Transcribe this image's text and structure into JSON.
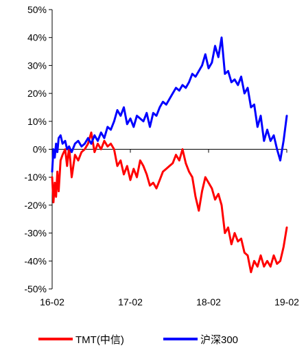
{
  "chart_data": {
    "type": "line",
    "title": "",
    "xlabel": "",
    "ylabel": "",
    "ylim": [
      -50,
      50
    ],
    "yticks": [
      "50%",
      "40%",
      "30%",
      "20%",
      "10%",
      "0%",
      "-10%",
      "-20%",
      "-30%",
      "-40%",
      "-50%"
    ],
    "xticks": [
      "16-02",
      "17-02",
      "18-02",
      "19-02"
    ],
    "xlim": [
      0,
      36
    ],
    "grid": false,
    "legend_position": "bottom",
    "series": [
      {
        "name": "TMT(中信)",
        "color": "#ff0000",
        "x": [
          0,
          0.2,
          0.4,
          0.6,
          0.8,
          1.0,
          1.3,
          1.6,
          2.0,
          2.3,
          2.6,
          3.0,
          3.5,
          4.0,
          4.5,
          5.0,
          5.5,
          6.0,
          6.5,
          7.0,
          7.5,
          8.0,
          8.5,
          9.0,
          9.5,
          10.0,
          10.5,
          11.0,
          11.5,
          12.0,
          12.5,
          13.0,
          13.5,
          14.0,
          14.5,
          15.0,
          15.5,
          16.0,
          16.5,
          17.0,
          17.5,
          18.0,
          18.5,
          19.0,
          19.5,
          20.0,
          20.5,
          21.0,
          21.5,
          22.0,
          22.5,
          23.0,
          23.5,
          24.0,
          24.5,
          25.0,
          25.5,
          26.0,
          26.5,
          27.0,
          27.5,
          28.0,
          28.5,
          29.0,
          29.5,
          30.0,
          30.5,
          31.0,
          31.5,
          32.0,
          32.5,
          33.0,
          33.5,
          34.0,
          34.5,
          35.0,
          35.5,
          36.0
        ],
        "values": [
          -10,
          -19,
          -12,
          -17,
          -8,
          -15,
          -4,
          -2,
          0,
          -6,
          1,
          -10,
          -2,
          -4,
          -1,
          0,
          2,
          6,
          -1,
          2,
          0,
          3,
          1,
          2,
          0,
          -6,
          -4,
          -9,
          -6,
          -11,
          -7,
          -10,
          -4,
          -6,
          -9,
          -13,
          -12,
          -14,
          -11,
          -8,
          -7,
          -6,
          -5,
          -2,
          -4,
          0,
          -5,
          -8,
          -10,
          -17,
          -22,
          -15,
          -10,
          -12,
          -14,
          -18,
          -16,
          -20,
          -30,
          -28,
          -34,
          -30,
          -33,
          -32,
          -37,
          -38,
          -44,
          -40,
          -42,
          -38,
          -42,
          -40,
          -42,
          -38,
          -41,
          -40,
          -35,
          -28
        ]
      },
      {
        "name": "沪深300",
        "color": "#0000ff",
        "x": [
          0,
          0.2,
          0.4,
          0.6,
          0.8,
          1.0,
          1.3,
          1.6,
          2.0,
          2.3,
          2.6,
          3.0,
          3.5,
          4.0,
          4.5,
          5.0,
          5.5,
          6.0,
          6.5,
          7.0,
          7.5,
          8.0,
          8.5,
          9.0,
          9.5,
          10.0,
          10.5,
          11.0,
          11.5,
          12.0,
          12.5,
          13.0,
          13.5,
          14.0,
          14.5,
          15.0,
          15.5,
          16.0,
          16.5,
          17.0,
          17.5,
          18.0,
          18.5,
          19.0,
          19.5,
          20.0,
          20.5,
          21.0,
          21.5,
          22.0,
          22.5,
          23.0,
          23.5,
          24.0,
          24.5,
          25.0,
          25.5,
          26.0,
          26.5,
          27.0,
          27.5,
          28.0,
          28.5,
          29.0,
          29.5,
          30.0,
          30.5,
          31.0,
          31.5,
          32.0,
          32.5,
          33.0,
          33.5,
          34.0,
          34.5,
          35.0,
          35.5,
          36.0
        ],
        "values": [
          -8,
          0,
          -3,
          2,
          -1,
          4,
          5,
          2,
          3,
          0,
          1,
          -1,
          2,
          3,
          1,
          2,
          4,
          2,
          5,
          3,
          6,
          4,
          8,
          7,
          10,
          14,
          12,
          15,
          9,
          11,
          8,
          12,
          11,
          10,
          13,
          8,
          13,
          12,
          15,
          17,
          16,
          18,
          20,
          22,
          21,
          23,
          22,
          24,
          27,
          26,
          28,
          30,
          34,
          29,
          31,
          37,
          33,
          40,
          27,
          28,
          24,
          25,
          23,
          26,
          20,
          22,
          15,
          16,
          8,
          12,
          3,
          7,
          3,
          5,
          0,
          -4,
          3,
          12
        ]
      }
    ]
  }
}
